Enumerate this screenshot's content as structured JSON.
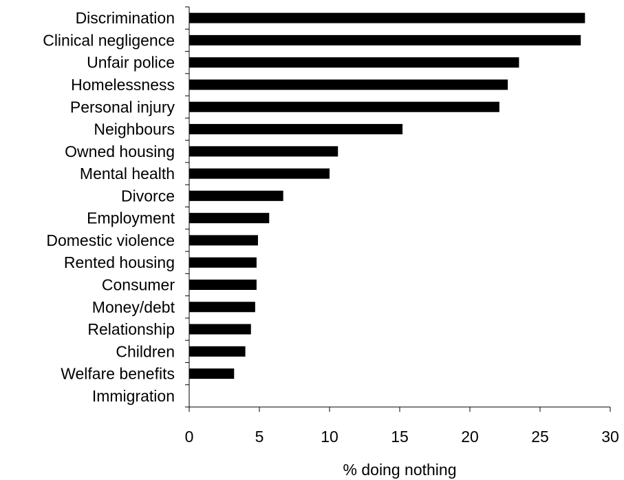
{
  "chart_data": {
    "type": "bar",
    "orientation": "horizontal",
    "title": "",
    "xlabel": "% doing nothing",
    "ylabel": "",
    "xlim": [
      0,
      30
    ],
    "xticks": [
      0,
      5,
      10,
      15,
      20,
      25,
      30
    ],
    "grid": false,
    "legend": "none",
    "bar_color": "#000000",
    "categories": [
      "Discrimination",
      "Clinical negligence",
      "Unfair police",
      "Homelessness",
      "Personal injury",
      "Neighbours",
      "Owned housing",
      "Mental health",
      "Divorce",
      "Employment",
      "Domestic violence",
      "Rented housing",
      "Consumer",
      "Money/debt",
      "Relationship",
      "Children",
      "Welfare benefits",
      "Immigration"
    ],
    "values": [
      28.2,
      27.9,
      23.5,
      22.7,
      22.1,
      15.2,
      10.6,
      10.0,
      6.7,
      5.7,
      4.9,
      4.8,
      4.8,
      4.7,
      4.4,
      4.0,
      3.2,
      0
    ]
  }
}
